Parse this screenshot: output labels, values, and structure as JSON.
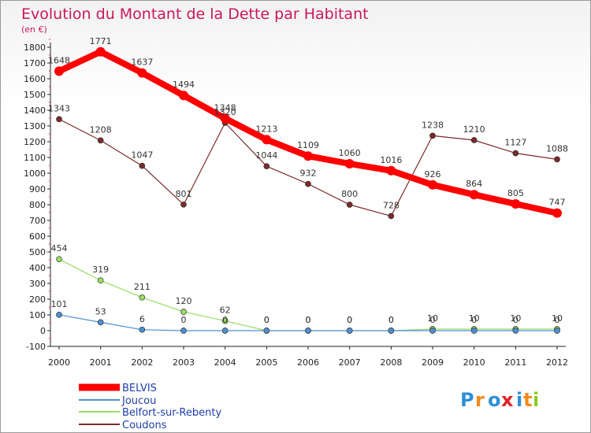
{
  "chart_data": {
    "type": "line",
    "title": "Evolution du Montant de la Dette par Habitant",
    "subtitle": "(en €)",
    "x": [
      "2000",
      "2001",
      "2002",
      "2003",
      "2004",
      "2005",
      "2006",
      "2007",
      "2008",
      "2009",
      "2010",
      "2011",
      "2012"
    ],
    "ylim": [
      -100,
      1800
    ],
    "yticks": [
      -100,
      0,
      100,
      200,
      300,
      400,
      500,
      600,
      700,
      800,
      900,
      1000,
      1100,
      1200,
      1300,
      1400,
      1500,
      1600,
      1700,
      1800
    ],
    "grid": false,
    "legend_position": "bottom-left",
    "series": [
      {
        "name": "BELVIS",
        "color": "#ff0000",
        "values": [
          1648,
          1771,
          1637,
          1494,
          1348,
          1213,
          1109,
          1060,
          1016,
          926,
          864,
          805,
          747
        ]
      },
      {
        "name": "Joucou",
        "color": "#4f8fd0",
        "values": [
          101,
          53,
          6,
          0,
          0,
          0,
          0,
          0,
          0,
          0,
          0,
          0,
          0
        ]
      },
      {
        "name": "Belfort-sur-Rebenty",
        "color": "#99dd66",
        "values": [
          454,
          319,
          211,
          120,
          62,
          0,
          0,
          0,
          0,
          10,
          10,
          10,
          10
        ]
      },
      {
        "name": "Coudons",
        "color": "#7a2a2a",
        "values": [
          1343,
          1208,
          1047,
          801,
          1320,
          1044,
          932,
          800,
          728,
          1238,
          1210,
          1127,
          1088
        ]
      }
    ]
  },
  "logo": {
    "letters": [
      "P",
      "r",
      "o",
      "x",
      "i",
      "t",
      "i"
    ],
    "colors": [
      "#2f8fd8",
      "#f08a1a",
      "#2f8fd8",
      "#e0202a",
      "#2f8fd8",
      "#f08a1a",
      "#8acb2a"
    ]
  }
}
